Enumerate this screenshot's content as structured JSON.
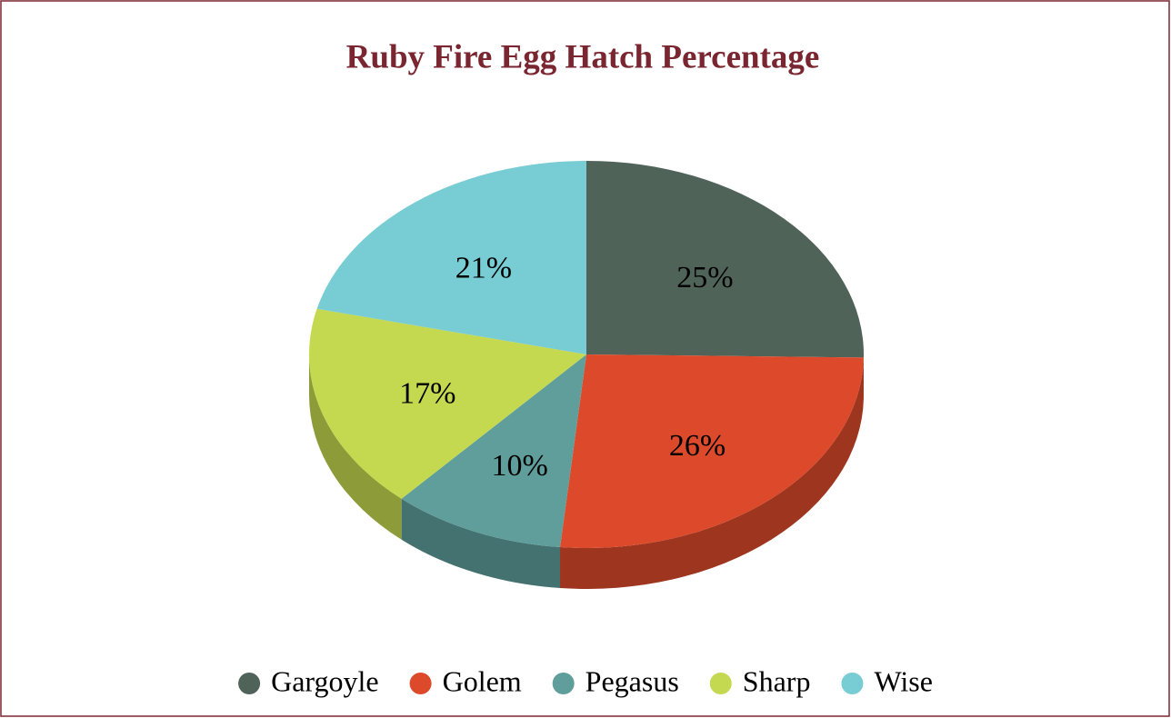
{
  "chart_data": {
    "type": "pie",
    "title": "Ruby Fire Egg Hatch Percentage",
    "categories": [
      "Gargoyle",
      "Golem",
      "Pegasus",
      "Sharp",
      "Wise"
    ],
    "values": [
      25,
      26,
      10,
      17,
      21
    ],
    "value_labels": [
      "25%",
      "26%",
      "10%",
      "17%",
      "21%"
    ],
    "colors": [
      "#506359",
      "#dc4a2b",
      "#5f9e9b",
      "#c4d94f",
      "#78ccd4"
    ],
    "legend": "bottom"
  }
}
